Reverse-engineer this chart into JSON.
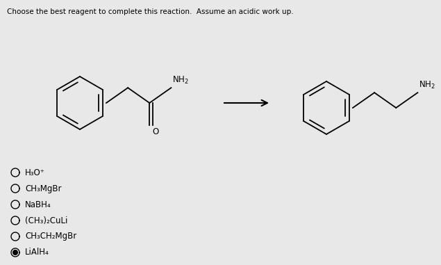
{
  "title": "Choose the best reagent to complete this reaction.  Assume an acidic work up.",
  "background_color": "#e8e8e8",
  "options": [
    {
      "label": "H₃O⁺",
      "selected": false
    },
    {
      "label": "CH₃MgBr",
      "selected": false
    },
    {
      "label": "NaBH₄",
      "selected": false
    },
    {
      "label": "(CH₃)₂CuLi",
      "selected": false
    },
    {
      "label": "CH₃CH₂MgBr",
      "selected": false
    },
    {
      "label": "LiAlH₄",
      "selected": true
    }
  ]
}
